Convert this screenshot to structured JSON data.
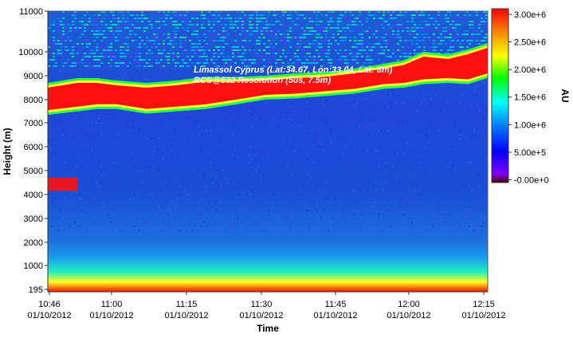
{
  "chart_data": {
    "type": "heatmap",
    "title_lines": [
      "Limassol Cyprus (Lat:34.67, Lon:33.04, Lat: 8m)",
      "RCS@532 Resolution (50s, 7.5m)"
    ],
    "xlabel": "Time",
    "ylabel": "Height (m)",
    "colorbar_label": "AU",
    "x_ticks": [
      {
        "time": "10:46",
        "date": "01/10/2012",
        "minutes": 646
      },
      {
        "time": "11:00",
        "date": "01/10/2012",
        "minutes": 660
      },
      {
        "time": "11:15",
        "date": "01/10/2012",
        "minutes": 675
      },
      {
        "time": "11:30",
        "date": "01/10/2012",
        "minutes": 690
      },
      {
        "time": "11:45",
        "date": "01/10/2012",
        "minutes": 705
      },
      {
        "time": "12:00",
        "date": "01/10/2012",
        "minutes": 720
      },
      {
        "time": "12:15",
        "date": "01/10/2012",
        "minutes": 735
      }
    ],
    "y_ticks": [
      195,
      1000,
      2000,
      3000,
      4000,
      5000,
      6000,
      7000,
      8000,
      9000,
      10000,
      11000
    ],
    "y_tick_labels": [
      "195",
      "1000",
      "2000",
      "3000",
      "4000",
      "5000",
      "6000",
      "7000",
      "8000",
      "9000",
      "10000",
      "11000"
    ],
    "ylim": [
      195,
      11000
    ],
    "xlim_minutes": [
      646,
      735
    ],
    "colorbar_ticks": [
      {
        "value": 0,
        "label": "-0.00e+0"
      },
      {
        "value": 500000,
        "label": "5.00e+5"
      },
      {
        "value": 1000000,
        "label": "1.00e+6"
      },
      {
        "value": 1500000,
        "label": "1.50e+6"
      },
      {
        "value": 2000000,
        "label": "2.00e+6"
      },
      {
        "value": 2500000,
        "label": "2.50e+6"
      },
      {
        "value": 3000000,
        "label": "3.00e+6"
      }
    ],
    "colorbar_range": [
      -50000,
      3100000
    ],
    "colormap": [
      "#ff0000",
      "#ff8000",
      "#ffff00",
      "#00ff00",
      "#00ffff",
      "#0080ff",
      "#0000ff",
      "#8000ff",
      "#4b0000"
    ],
    "cloud_layer_top_m": [
      {
        "minutes": 646,
        "base": 7550,
        "top": 8500
      },
      {
        "minutes": 652,
        "base": 7700,
        "top": 8700
      },
      {
        "minutes": 656,
        "base": 7800,
        "top": 8700
      },
      {
        "minutes": 660,
        "base": 7800,
        "top": 8600
      },
      {
        "minutes": 666,
        "base": 7600,
        "top": 8500
      },
      {
        "minutes": 672,
        "base": 7700,
        "top": 8600
      },
      {
        "minutes": 678,
        "base": 7800,
        "top": 8750
      },
      {
        "minutes": 684,
        "base": 8000,
        "top": 8750
      },
      {
        "minutes": 690,
        "base": 8200,
        "top": 8800
      },
      {
        "minutes": 696,
        "base": 8250,
        "top": 8900
      },
      {
        "minutes": 702,
        "base": 8350,
        "top": 8950
      },
      {
        "minutes": 708,
        "base": 8450,
        "top": 9100
      },
      {
        "minutes": 714,
        "base": 8650,
        "top": 9300
      },
      {
        "minutes": 718,
        "base": 8700,
        "top": 9450
      },
      {
        "minutes": 722,
        "base": 8850,
        "top": 9800
      },
      {
        "minutes": 727,
        "base": 8900,
        "top": 9700
      },
      {
        "minutes": 731,
        "base": 8850,
        "top": 9900
      },
      {
        "minutes": 735,
        "base": 9100,
        "top": 10100
      }
    ],
    "low_cloud_patch": {
      "minutes_start": 646,
      "minutes_end": 652,
      "base_m": 4150,
      "top_m": 4700
    },
    "boundary_layer_top_m": 1300,
    "grid": false
  }
}
